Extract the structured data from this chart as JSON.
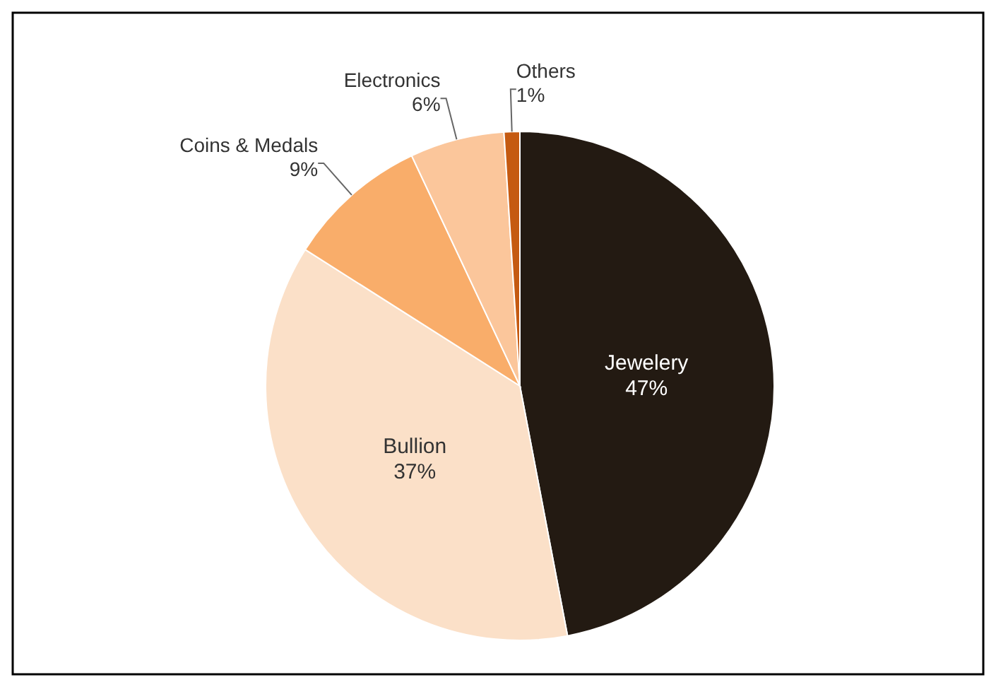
{
  "chart_data": {
    "type": "pie",
    "categories": [
      "Jewelery",
      "Bullion",
      "Coins & Medals",
      "Electronics",
      "Others"
    ],
    "values": [
      47,
      37,
      9,
      6,
      1
    ],
    "colors": [
      "#231a12",
      "#fbe0c8",
      "#f9ad6a",
      "#fbc69b",
      "#c55a11"
    ],
    "value_labels": [
      "47%",
      "37%",
      "9%",
      "6%",
      "1%"
    ]
  }
}
